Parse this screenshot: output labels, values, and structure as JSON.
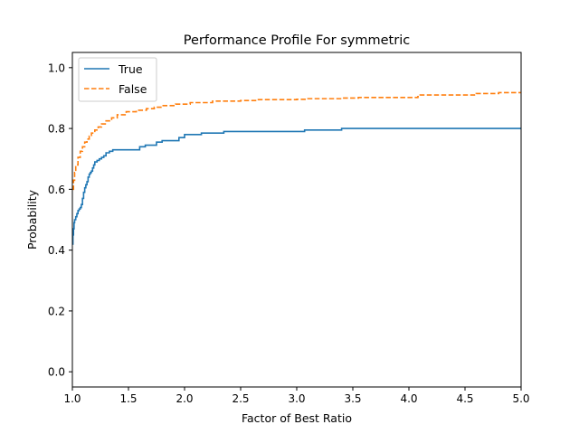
{
  "chart_data": {
    "type": "line",
    "title": "Performance Profile For symmetric",
    "xlabel": "Factor of Best Ratio",
    "ylabel": "Probability",
    "xlim": [
      1.0,
      5.0
    ],
    "ylim": [
      -0.05,
      1.05
    ],
    "xticks": [
      "1.0",
      "1.5",
      "2.0",
      "2.5",
      "3.0",
      "3.5",
      "4.0",
      "4.5",
      "5.0"
    ],
    "yticks": [
      "0.0",
      "0.2",
      "0.4",
      "0.6",
      "0.8",
      "1.0"
    ],
    "grid": false,
    "legend_position": "upper-left",
    "step": "post",
    "series": [
      {
        "name": "True",
        "color": "#1f77b4",
        "linestyle": "solid",
        "x": [
          1.0,
          1.005,
          1.01,
          1.015,
          1.02,
          1.03,
          1.04,
          1.05,
          1.06,
          1.07,
          1.08,
          1.09,
          1.1,
          1.11,
          1.12,
          1.13,
          1.14,
          1.15,
          1.16,
          1.17,
          1.18,
          1.19,
          1.2,
          1.22,
          1.24,
          1.26,
          1.28,
          1.3,
          1.33,
          1.36,
          1.4,
          1.45,
          1.6,
          1.65,
          1.75,
          1.8,
          1.95,
          2.0,
          2.15,
          2.35,
          2.5,
          3.07,
          3.4,
          5.0
        ],
        "y": [
          0.42,
          0.45,
          0.47,
          0.49,
          0.5,
          0.51,
          0.52,
          0.53,
          0.535,
          0.54,
          0.55,
          0.57,
          0.59,
          0.605,
          0.615,
          0.625,
          0.64,
          0.65,
          0.655,
          0.66,
          0.67,
          0.68,
          0.69,
          0.695,
          0.7,
          0.705,
          0.71,
          0.72,
          0.725,
          0.73,
          0.73,
          0.73,
          0.74,
          0.745,
          0.755,
          0.76,
          0.77,
          0.78,
          0.785,
          0.79,
          0.79,
          0.795,
          0.8,
          0.8
        ]
      },
      {
        "name": "False",
        "color": "#ff7f0e",
        "linestyle": "dashed",
        "x": [
          1.0,
          1.01,
          1.02,
          1.03,
          1.05,
          1.07,
          1.09,
          1.11,
          1.13,
          1.15,
          1.17,
          1.2,
          1.23,
          1.26,
          1.3,
          1.35,
          1.4,
          1.48,
          1.57,
          1.66,
          1.73,
          1.8,
          1.92,
          2.05,
          2.25,
          2.5,
          2.65,
          3.0,
          3.1,
          3.4,
          3.5,
          3.55,
          4.08,
          4.1,
          4.6,
          4.8,
          5.0
        ],
        "y": [
          0.6,
          0.63,
          0.655,
          0.68,
          0.705,
          0.725,
          0.74,
          0.755,
          0.765,
          0.775,
          0.785,
          0.795,
          0.805,
          0.815,
          0.825,
          0.835,
          0.845,
          0.855,
          0.86,
          0.865,
          0.87,
          0.875,
          0.88,
          0.885,
          0.89,
          0.892,
          0.895,
          0.896,
          0.898,
          0.9,
          0.9,
          0.902,
          0.905,
          0.91,
          0.915,
          0.918,
          0.918
        ]
      }
    ]
  }
}
